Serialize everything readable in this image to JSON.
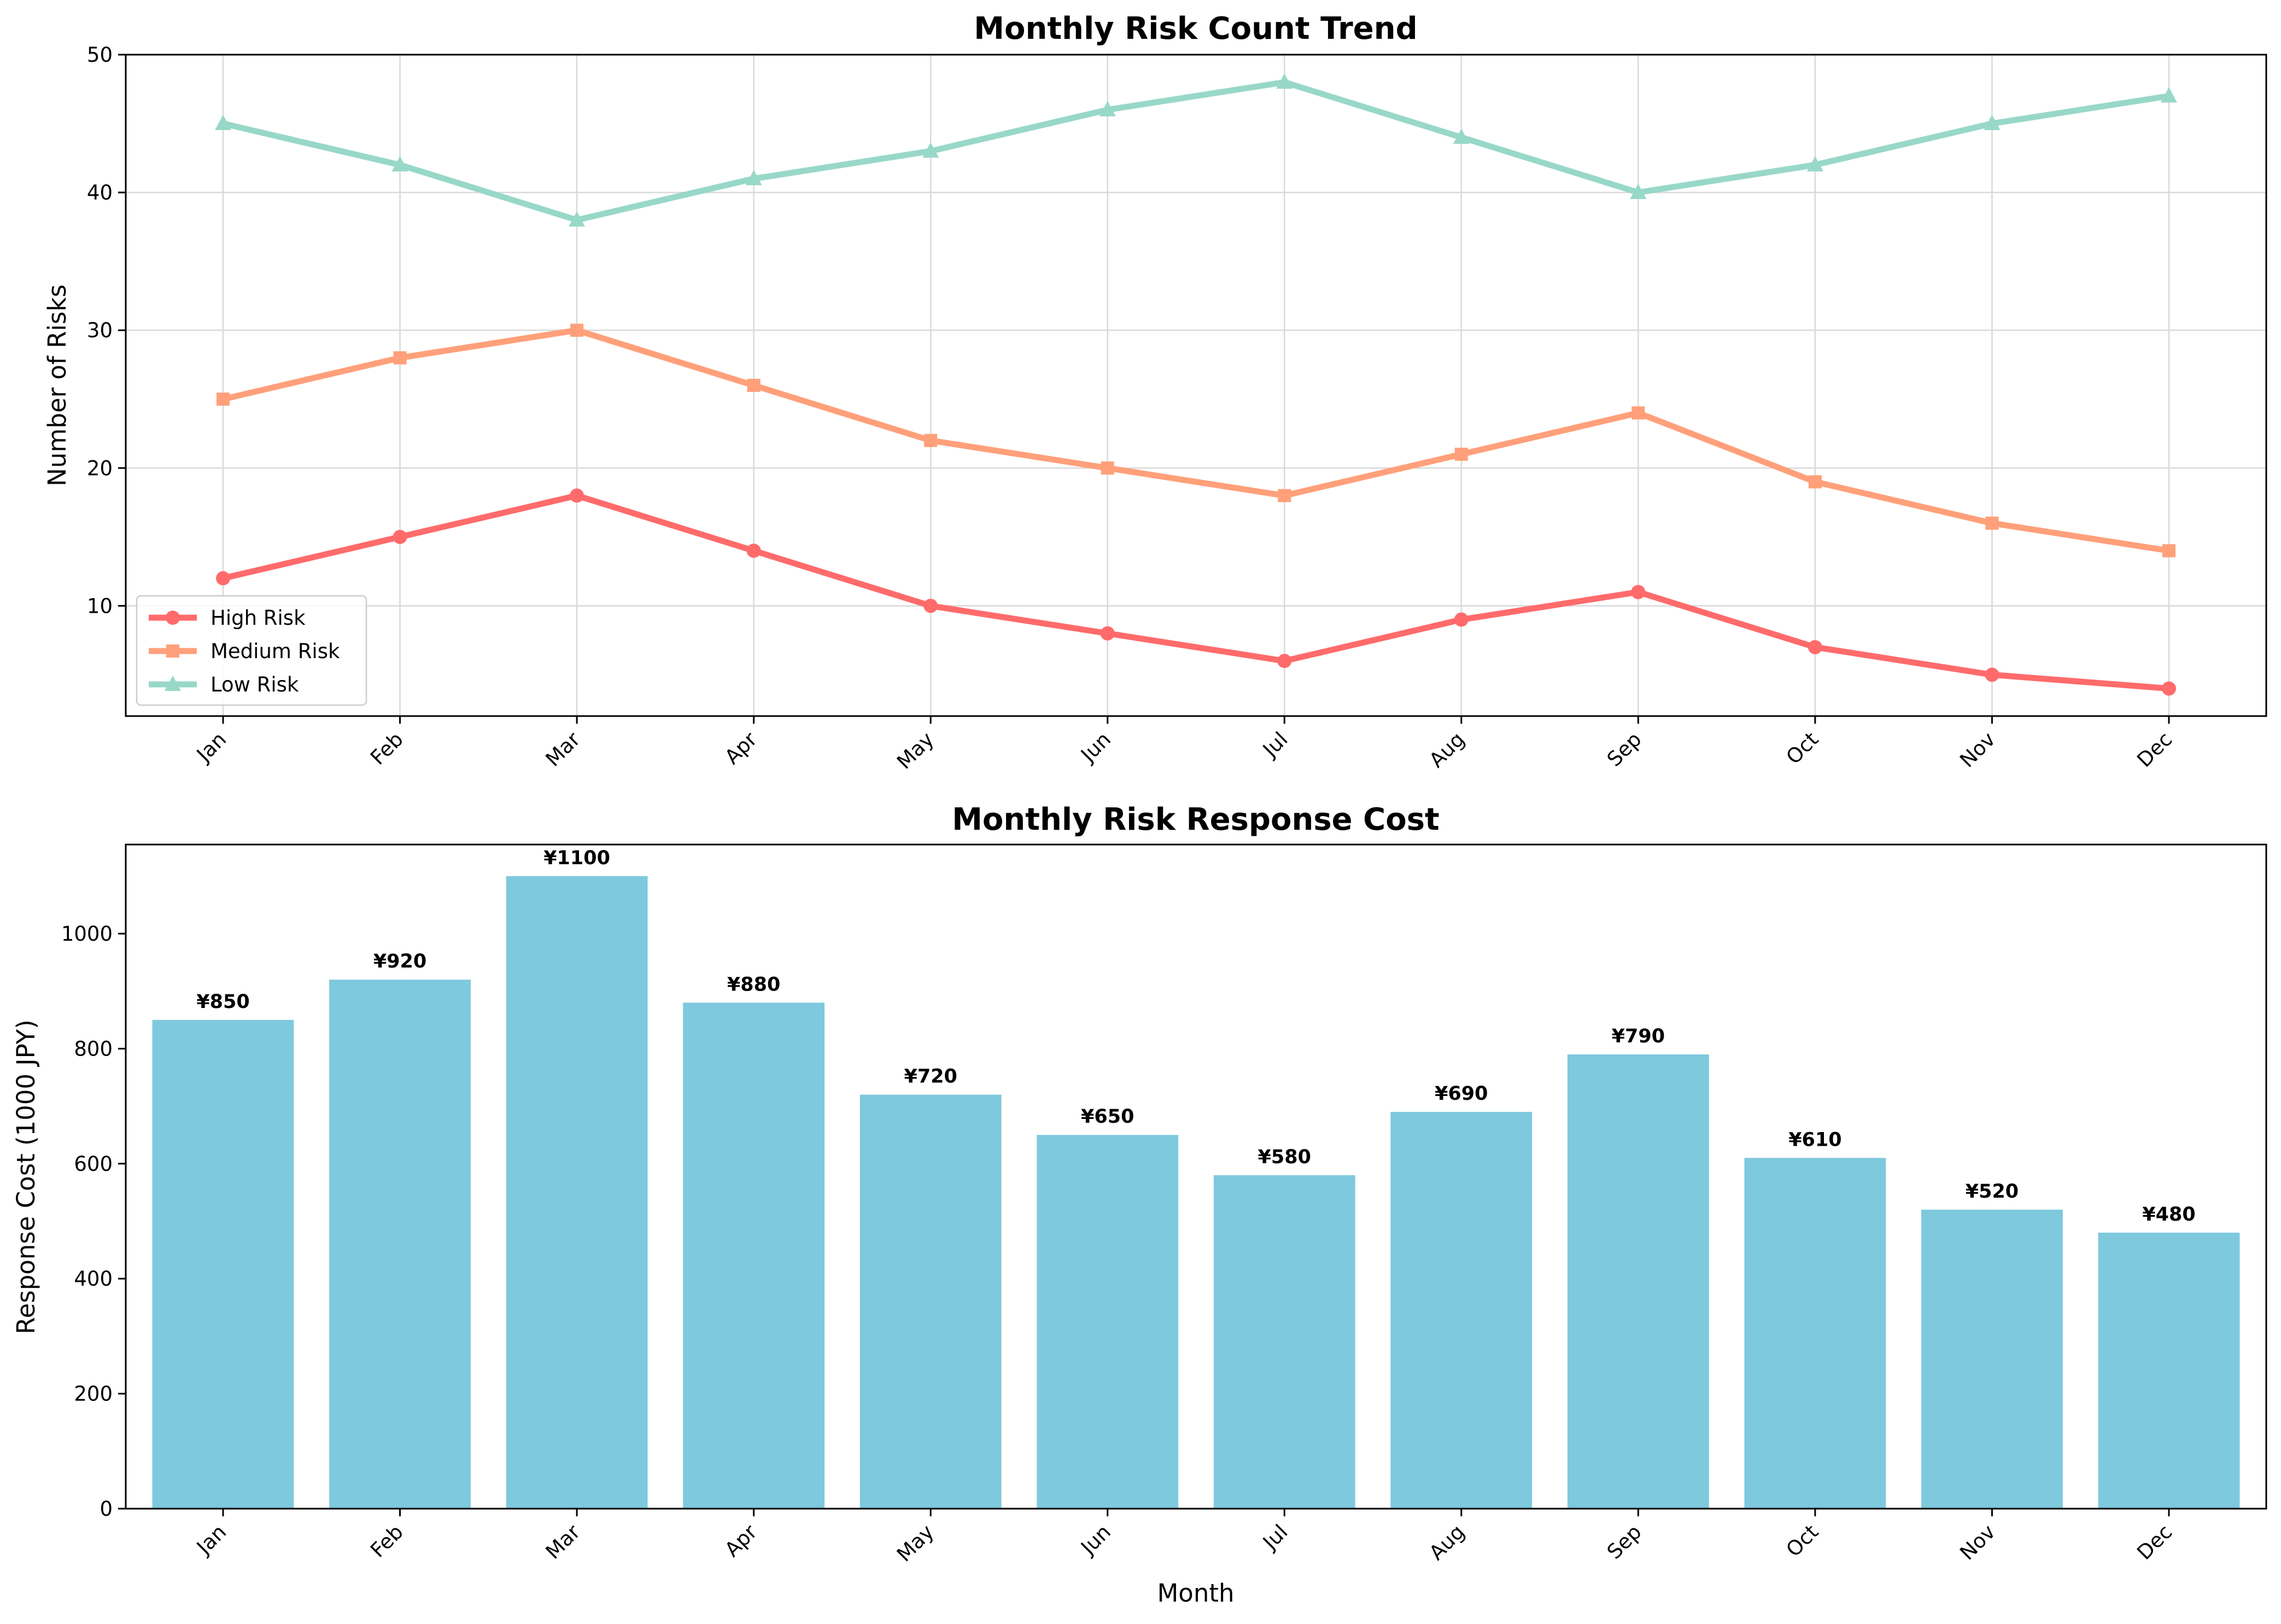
{
  "chart_data": [
    {
      "type": "line",
      "title": "Monthly Risk Count Trend",
      "xlabel": "",
      "ylabel": "Number of Risks",
      "categories": [
        "Jan",
        "Feb",
        "Mar",
        "Apr",
        "May",
        "Jun",
        "Jul",
        "Aug",
        "Sep",
        "Oct",
        "Nov",
        "Dec"
      ],
      "ylim": [
        2,
        50
      ],
      "yticks": [
        10,
        20,
        30,
        40,
        50
      ],
      "grid": true,
      "legend_position": "lower-left",
      "series": [
        {
          "name": "High Risk",
          "marker": "circle",
          "color": "#ff6b6b",
          "values": [
            12,
            15,
            18,
            14,
            10,
            8,
            6,
            9,
            11,
            7,
            5,
            4
          ]
        },
        {
          "name": "Medium Risk",
          "marker": "square",
          "color": "#ffa07a",
          "values": [
            25,
            28,
            30,
            26,
            22,
            20,
            18,
            21,
            24,
            19,
            16,
            14
          ]
        },
        {
          "name": "Low Risk",
          "marker": "triangle",
          "color": "#98d8c8",
          "values": [
            45,
            42,
            38,
            41,
            43,
            46,
            48,
            44,
            40,
            42,
            45,
            47
          ]
        }
      ]
    },
    {
      "type": "bar",
      "title": "Monthly Risk Response Cost",
      "xlabel": "Month",
      "ylabel": "Response Cost (1000 JPY)",
      "categories": [
        "Jan",
        "Feb",
        "Mar",
        "Apr",
        "May",
        "Jun",
        "Jul",
        "Aug",
        "Sep",
        "Oct",
        "Nov",
        "Dec"
      ],
      "values": [
        850,
        920,
        1100,
        880,
        720,
        650,
        580,
        690,
        790,
        610,
        520,
        480
      ],
      "data_labels": [
        "¥850",
        "¥920",
        "¥1100",
        "¥880",
        "¥720",
        "¥650",
        "¥580",
        "¥690",
        "¥790",
        "¥610",
        "¥520",
        "¥480"
      ],
      "ylim": [
        0,
        1155
      ],
      "yticks": [
        0,
        200,
        400,
        600,
        800,
        1000
      ],
      "color": "#7ec9dd",
      "grid": false
    }
  ]
}
